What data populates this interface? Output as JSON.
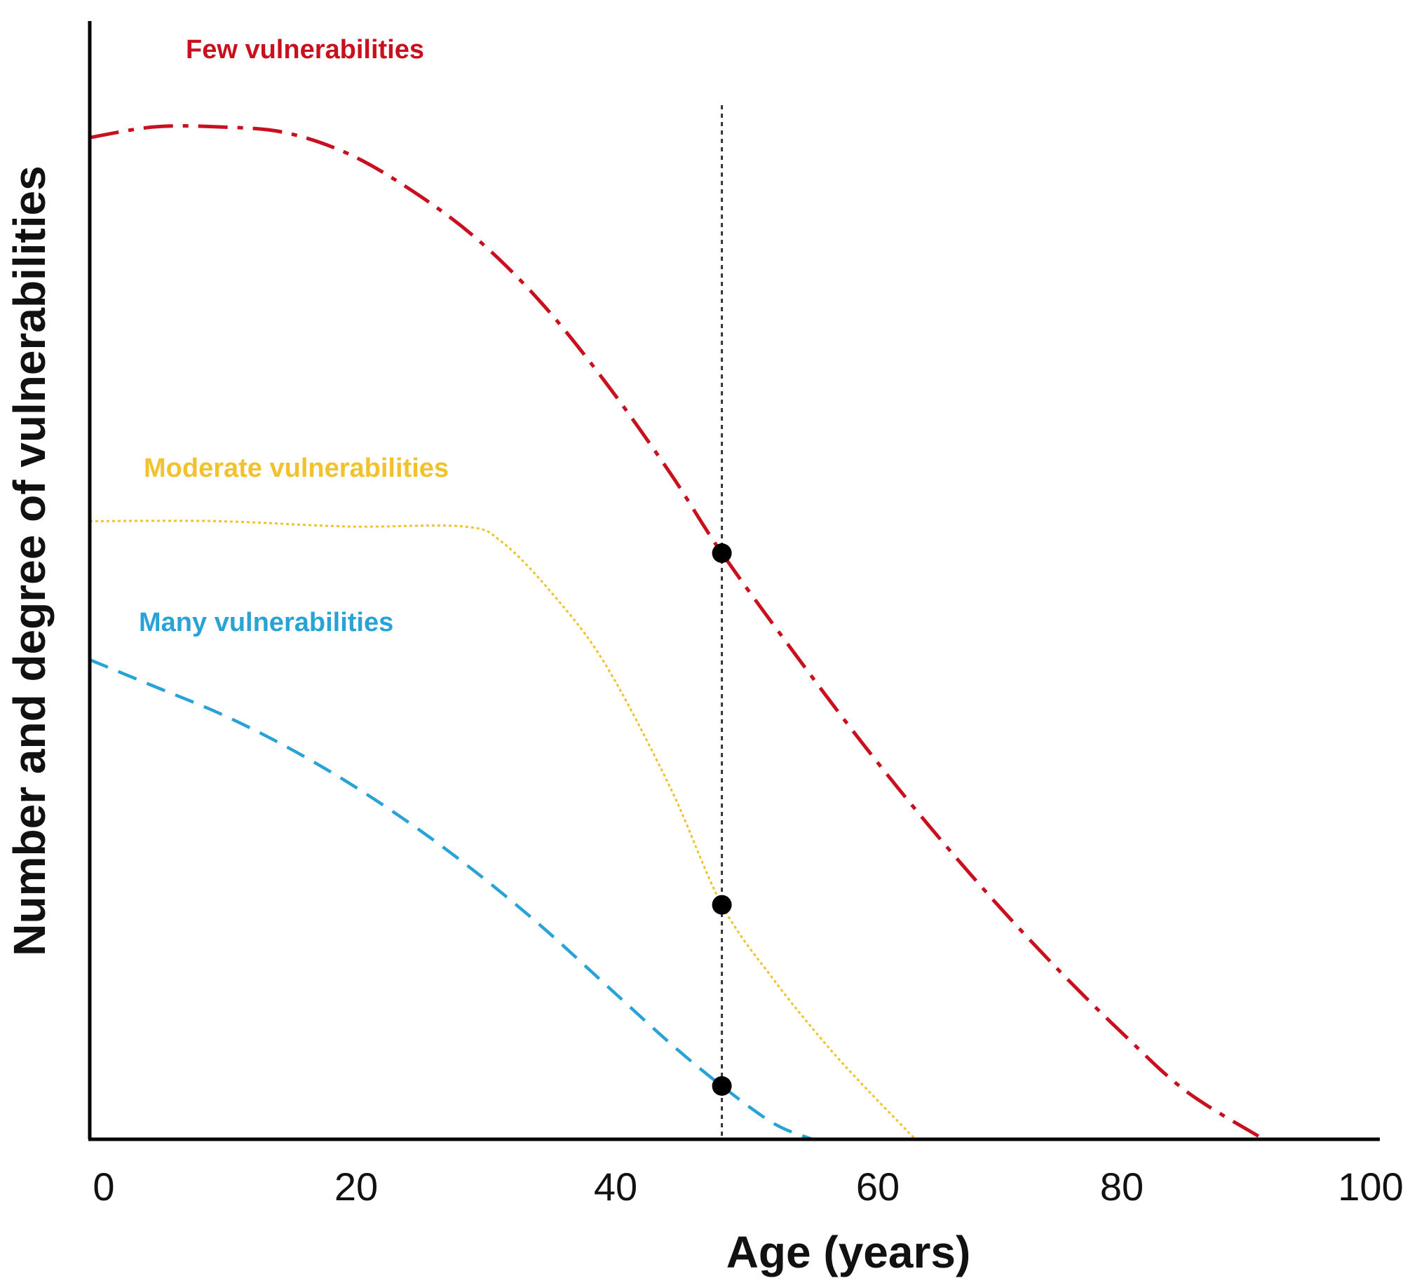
{
  "chart_data": {
    "type": "line",
    "xlabel": "Age (years)",
    "ylabel": "Number and degree of vulnerabilities",
    "xlim": [
      0,
      100
    ],
    "ylim": [
      0,
      100
    ],
    "x_ticks": [
      "0",
      "20",
      "40",
      "60",
      "80",
      "100"
    ],
    "y_ticks": [],
    "grid": false,
    "legend": "none",
    "reference_line": {
      "x": 49,
      "style": "dotted",
      "color": "#333333"
    },
    "series": [
      {
        "name": "Few vulnerabilities",
        "color": "#c8101e",
        "dash": "dash-dot",
        "points": [
          [
            0,
            94
          ],
          [
            5,
            95
          ],
          [
            10,
            95
          ],
          [
            15,
            94.5
          ],
          [
            20,
            92.5
          ],
          [
            25,
            89
          ],
          [
            30,
            84.5
          ],
          [
            35,
            78.5
          ],
          [
            40,
            71
          ],
          [
            45,
            62.5
          ],
          [
            49,
            55
          ],
          [
            55,
            45
          ],
          [
            60,
            37
          ],
          [
            65,
            29.5
          ],
          [
            70,
            22.5
          ],
          [
            75,
            16
          ],
          [
            80,
            10
          ],
          [
            85,
            4.5
          ],
          [
            91,
            0
          ]
        ]
      },
      {
        "name": "Moderate vulnerabilities",
        "color": "#f2c12e",
        "dash": "dotted",
        "points": [
          [
            0,
            58
          ],
          [
            10,
            58
          ],
          [
            20,
            57.5
          ],
          [
            29,
            57.5
          ],
          [
            32,
            56
          ],
          [
            36,
            51
          ],
          [
            40,
            44.5
          ],
          [
            45,
            33
          ],
          [
            49,
            22
          ],
          [
            53,
            15
          ],
          [
            57,
            9
          ],
          [
            60,
            5
          ],
          [
            64,
            0
          ]
        ]
      },
      {
        "name": "Many vulnerabilities",
        "color": "#29a3d6",
        "dash": "dashed",
        "points": [
          [
            0,
            45
          ],
          [
            5,
            42.5
          ],
          [
            10,
            40
          ],
          [
            15,
            37
          ],
          [
            20,
            33.5
          ],
          [
            25,
            29.5
          ],
          [
            30,
            25
          ],
          [
            35,
            20
          ],
          [
            40,
            14.5
          ],
          [
            45,
            9
          ],
          [
            49,
            5
          ],
          [
            53,
            1.5
          ],
          [
            56,
            0
          ]
        ]
      }
    ],
    "markers": [
      {
        "series": "Few vulnerabilities",
        "x": 49,
        "y": 55
      },
      {
        "series": "Moderate vulnerabilities",
        "x": 49,
        "y": 22
      },
      {
        "series": "Many vulnerabilities",
        "x": 49,
        "y": 5
      }
    ]
  }
}
